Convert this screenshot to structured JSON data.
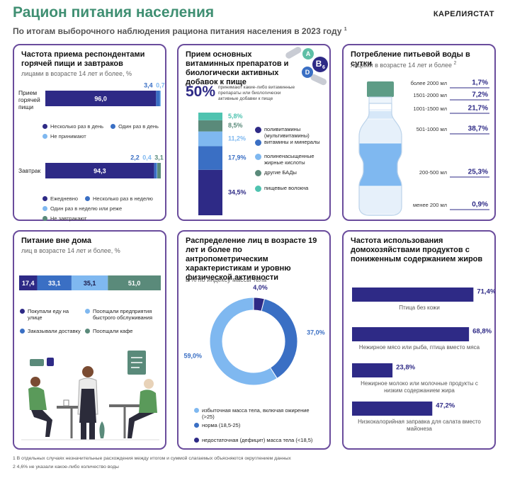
{
  "header": {
    "title": "Рацион питания населения",
    "subtitle": "По итогам выборочного наблюдения рациона питания населения в 2023 году",
    "subtitle_note": "1",
    "brand": "КАРЕЛИЯСТАТ"
  },
  "footnotes": [
    "1 В отдельных случаях незначительные расхождения между итогом и суммой слагаемых объясняются округлением данных",
    "2 4,6% не указали какое-либо количество воды"
  ],
  "chart_data": [
    {
      "type": "stacked_bar_rows",
      "title": "Частота приема респондентами горячей пищи и завтраков",
      "subtitle": "лицами в возрасте 14 лет и более, %",
      "rows": [
        {
          "label": "Прием горячей пищи",
          "series": [
            {
              "name": "Несколько раз в день",
              "color": "#2e2a86",
              "value": 96.0,
              "value_label": "96,0"
            },
            {
              "name": "Один раз в день",
              "color": "#3a6fc4",
              "value": 3.4,
              "value_label": "3,4"
            },
            {
              "name": "Не принимают",
              "color": "#7fb8f0",
              "value": 0.7,
              "value_label": "0,7"
            }
          ]
        },
        {
          "label": "Завтрак",
          "series": [
            {
              "name": "Ежедневно",
              "color": "#2e2a86",
              "value": 94.3,
              "value_label": "94,3"
            },
            {
              "name": "Несколько раз в неделю",
              "color": "#3a6fc4",
              "value": 2.2,
              "value_label": "2,2"
            },
            {
              "name": "Один раз в неделю или реже",
              "color": "#7fb8f0",
              "value": 0.4,
              "value_label": "0,4"
            },
            {
              "name": "Не завтракают",
              "color": "#5a8a7a",
              "value": 3.1,
              "value_label": "3,1"
            }
          ]
        }
      ]
    },
    {
      "type": "stacked_column",
      "title": "Прием основных витаминных препаратов и биологически активных добавок к пище",
      "highlight_label": "50%",
      "highlight_text": "принимают какие-либо витаминные препараты или биологически активные добавки к пище",
      "icon_labels": [
        "A",
        "B",
        "6",
        "D"
      ],
      "series": [
        {
          "name": "поливитамины (мультивитамины)",
          "color": "#2e2a86",
          "value": 34.5,
          "value_label": "34,5%"
        },
        {
          "name": "витамины и минералы",
          "color": "#3a6fc4",
          "value": 17.9,
          "value_label": "17,9%"
        },
        {
          "name": "полиненасыщенные жирные кислоты",
          "color": "#7fb8f0",
          "value": 11.2,
          "value_label": "11,2%"
        },
        {
          "name": "другие БАДы",
          "color": "#5a8a7a",
          "value": 8.5,
          "value_label": "8,5%"
        },
        {
          "name": "пищевые волокна",
          "color": "#4fc3b0",
          "value": 5.8,
          "value_label": "5,8%"
        }
      ]
    },
    {
      "type": "bottle",
      "title": "Потребление питьевой воды в сутки",
      "subtitle": "лицами в возрасте 14 лет и более",
      "note": "2",
      "categories": [
        "более 2000 мл",
        "1501-2000 мл",
        "1001-1500 мл",
        "501-1000 мл",
        "200-500 мл",
        "менее 200 мл"
      ],
      "values": [
        1.7,
        7.2,
        21.7,
        38.7,
        25.3,
        0.9
      ],
      "value_labels": [
        "1,7%",
        "7,2%",
        "21,7%",
        "38,7%",
        "25,3%",
        "0,9%"
      ],
      "colors": [
        "#e6f0fa",
        "#d6e7f8",
        "#e6f0fa",
        "#7fb8f0",
        "#e6f0fa",
        "#d6e7f8"
      ]
    },
    {
      "type": "stacked_bar",
      "title": "Питание вне дома",
      "subtitle": "лиц в возрасте 14 лет и более, %",
      "series": [
        {
          "name": "Покупали еду на улице",
          "color": "#2e2a86",
          "value": 17.4,
          "value_label": "17,4"
        },
        {
          "name": "Заказывали доставку",
          "color": "#3a6fc4",
          "value": 33.1,
          "value_label": "33,1"
        },
        {
          "name": "Посещали предприятия быстрого обслуживания",
          "color": "#7fb8f0",
          "value": 35.1,
          "value_label": "35,1"
        },
        {
          "name": "Посещали кафе",
          "color": "#5a8a7a",
          "value": 51.0,
          "value_label": "51,0"
        }
      ]
    },
    {
      "type": "donut",
      "title": "Распределение лиц в возрасте 19 лет и более по антропометрическим характеристикам и уровню физической активности",
      "subtitle": "в % по индексу массы тела",
      "series": [
        {
          "name": "недостаточная (дефицит) масса тела (<18,5)",
          "color": "#2e2a86",
          "value": 4.0,
          "value_label": "4,0%"
        },
        {
          "name": "норма (18,5-25)",
          "color": "#3a6fc4",
          "value": 37.0,
          "value_label": "37,0%"
        },
        {
          "name": "избыточная масса тела, включая ожирение (>25)",
          "color": "#7fb8f0",
          "value": 59.0,
          "value_label": "59,0%"
        }
      ]
    },
    {
      "type": "bar_h",
      "title": "Частота использования домохозяйствами продуктов с пониженным содержанием жиров",
      "categories": [
        "Птица без кожи",
        "Нежирное мясо или рыба, птица вместо мяса",
        "Нежирное молоко или молочные продукты с низким содержанием жира",
        "Низкокалорийная заправка для салата вместо майонеза"
      ],
      "values": [
        71.4,
        68.8,
        23.8,
        47.2
      ],
      "value_labels": [
        "71,4%",
        "68,8%",
        "23,8%",
        "47,2%"
      ],
      "color": "#2e2a86"
    }
  ]
}
